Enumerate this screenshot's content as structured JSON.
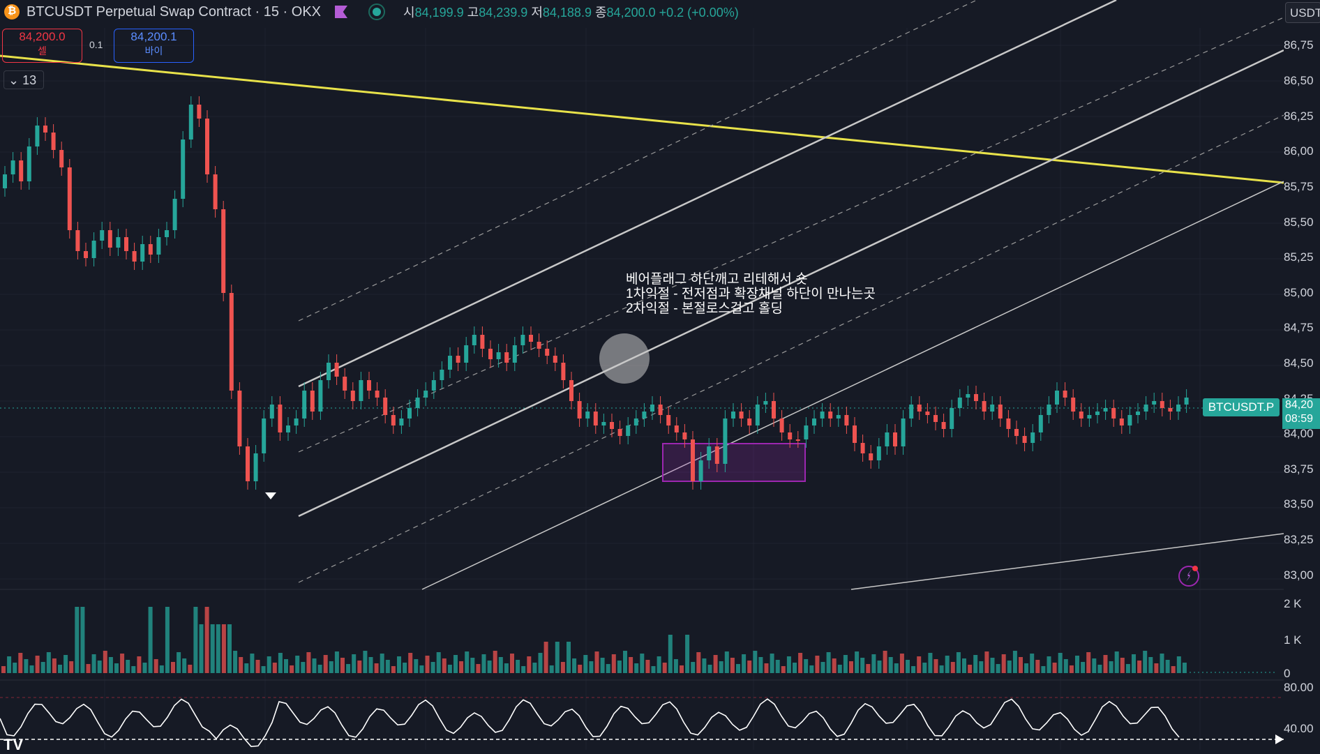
{
  "header": {
    "title": "BTCUSDT Perpetual Swap Contract · 15 · OKX",
    "open_label": "시",
    "open": "84,199.9",
    "high_label": "고",
    "high": "84,239.9",
    "low_label": "저",
    "low": "84,188.9",
    "close_label": "종",
    "close": "84,200.0",
    "change": "+0.2 (+0.00%)"
  },
  "trade": {
    "sell_price": "84,200.0",
    "sell_label": "셀",
    "spread": "0.1",
    "buy_price": "84,200.1",
    "buy_label": "바이"
  },
  "indicators_collapse": {
    "count": "13"
  },
  "price_axis": {
    "currency": "USDT",
    "labels": [
      "86,75",
      "86,50",
      "86,25",
      "86,00",
      "85,75",
      "85,50",
      "85,25",
      "85,00",
      "84,75",
      "84,50",
      "84,25",
      "84,00",
      "83,75",
      "83,50",
      "83,25",
      "83,00"
    ]
  },
  "current": {
    "symbol": "BTCUSDT.P",
    "price": "84,20",
    "countdown": "08:59"
  },
  "volume_axis": [
    "2 K",
    "1 K",
    "0"
  ],
  "rsi_axis": [
    "80.00",
    "40.00"
  ],
  "annotation": {
    "line1": "베어플래그 하단깨고 리테해서 숏",
    "line2": "1차익절 - 전저점과 확장채널 하단이 만나는곳",
    "line3": "2차익절 - 본절로스걸고 홀딩"
  },
  "colors": {
    "up": "#26a69a",
    "down": "#ef5350",
    "background": "#161a25",
    "trendline": "#e8e24a",
    "zone": "#9c27b0"
  },
  "icons": [
    "bitcoin-icon",
    "flag-icon",
    "status-dot-icon",
    "chevron-down-icon",
    "lightning-icon",
    "tradingview-logo",
    "axis-arrow-icon"
  ]
}
